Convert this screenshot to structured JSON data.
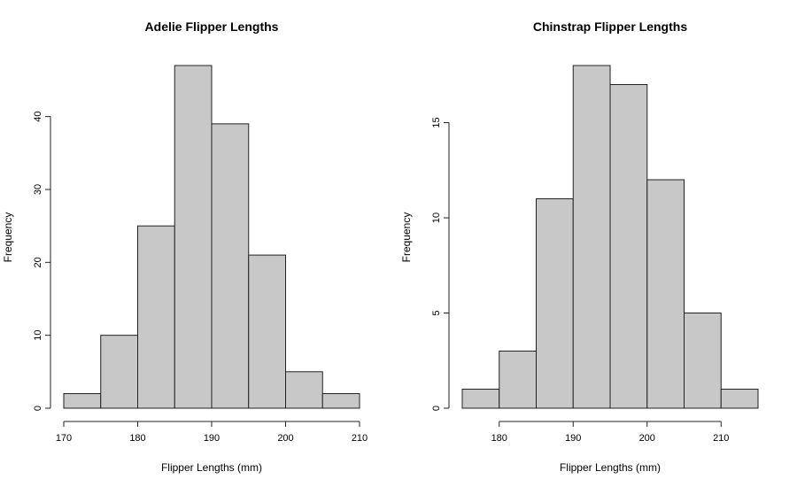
{
  "chart_data": [
    {
      "type": "bar",
      "title": "Adelie Flipper Lengths",
      "xlabel": "Flipper Lengths (mm)",
      "ylabel": "Frequency",
      "bin_edges": [
        170,
        175,
        180,
        185,
        190,
        195,
        200,
        205,
        210
      ],
      "values": [
        2,
        10,
        25,
        47,
        39,
        21,
        5,
        2
      ],
      "xlim": [
        170,
        210
      ],
      "ylim": [
        0,
        47
      ],
      "xticks": [
        170,
        180,
        190,
        200,
        210
      ],
      "yticks": [
        0,
        10,
        20,
        30,
        40
      ],
      "grid": false
    },
    {
      "type": "bar",
      "title": "Chinstrap Flipper Lengths",
      "xlabel": "Flipper Lengths (mm)",
      "ylabel": "Frequency",
      "bin_edges": [
        175,
        180,
        185,
        190,
        195,
        200,
        205,
        210,
        215
      ],
      "values": [
        1,
        3,
        11,
        18,
        17,
        12,
        5,
        1
      ],
      "xlim": [
        175,
        215
      ],
      "ylim": [
        0,
        18
      ],
      "xticks": [
        180,
        190,
        200,
        210
      ],
      "yticks": [
        0,
        5,
        10,
        15
      ],
      "grid": false
    }
  ]
}
